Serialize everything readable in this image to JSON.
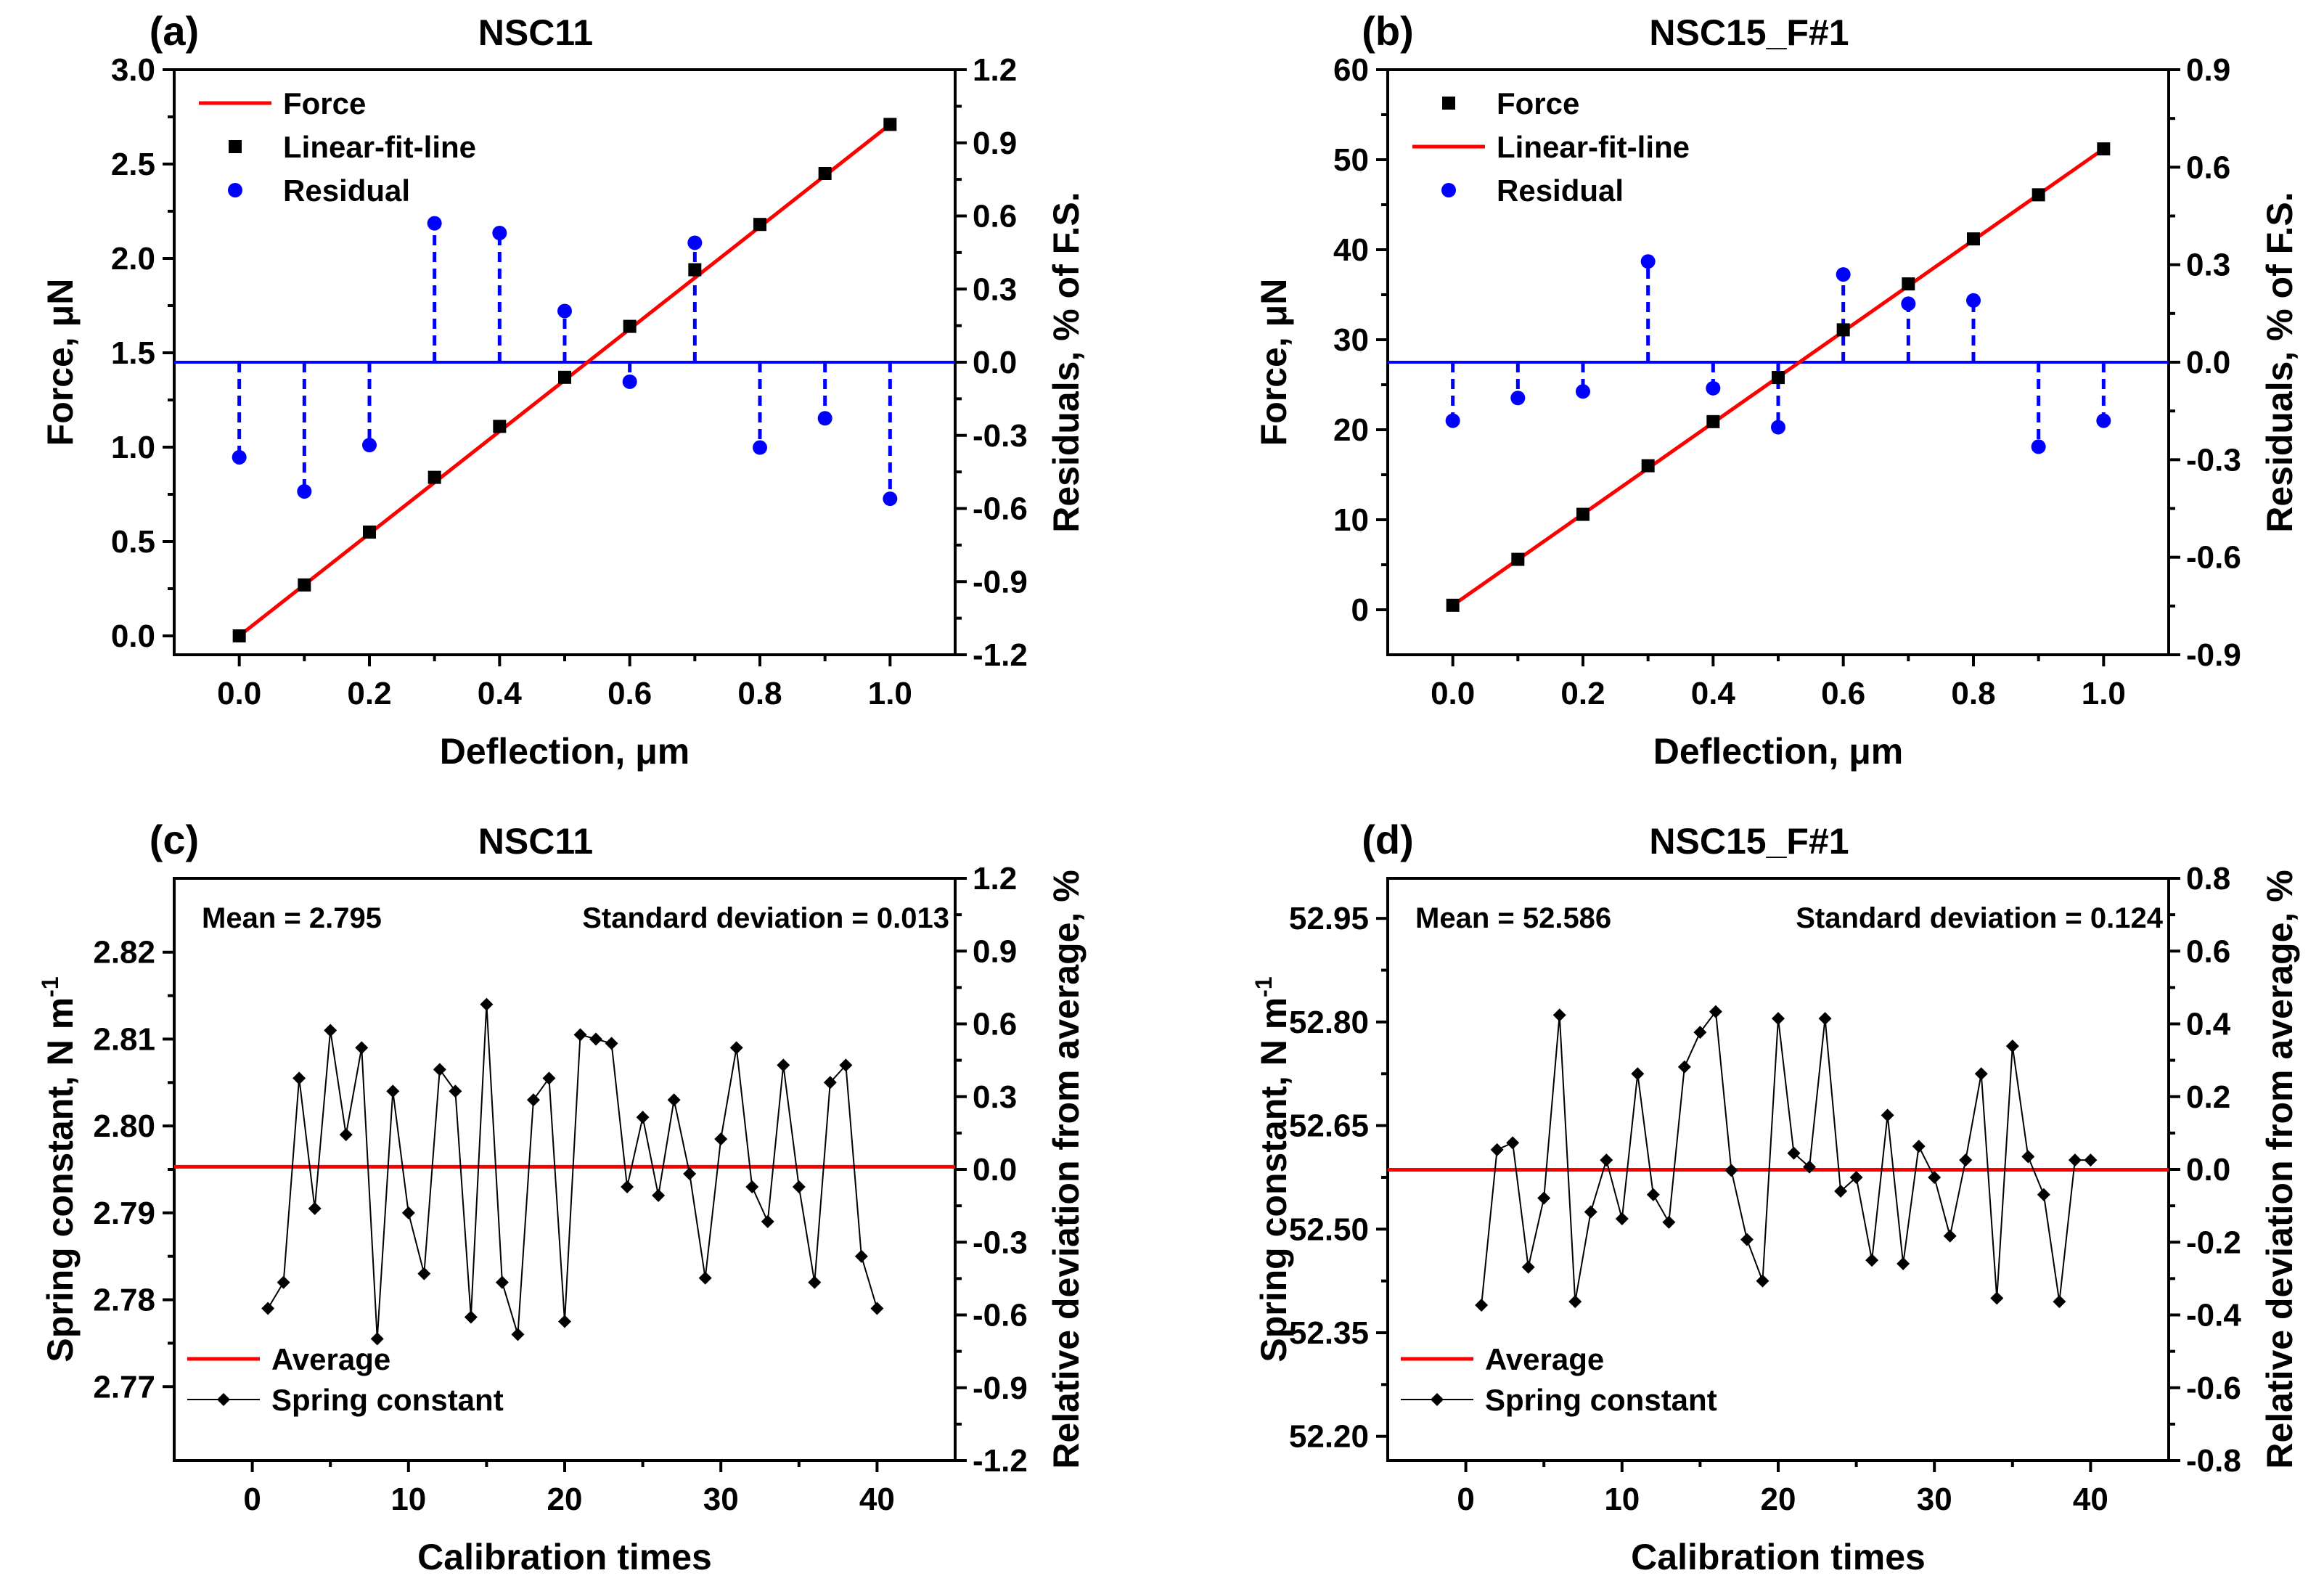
{
  "chart_data": [
    {
      "id": "a",
      "type": "scatter",
      "panel_label": "(a)",
      "title": "NSC11",
      "xlabel": "Deflection, μm",
      "ylabel": "Force, μN",
      "y2label": "Residuals, % of F.S.",
      "xlim": [
        -0.1,
        1.1
      ],
      "ylim": [
        -0.1,
        3.0
      ],
      "y2lim": [
        -1.2,
        1.2
      ],
      "xticks": [
        0.0,
        0.2,
        0.4,
        0.6,
        0.8,
        1.0
      ],
      "xtick_labels": [
        "0.0",
        "0.2",
        "0.4",
        "0.6",
        "0.8",
        "1.0"
      ],
      "yticks": [
        0.0,
        0.5,
        1.0,
        1.5,
        2.0,
        2.5,
        3.0
      ],
      "ytick_labels": [
        "0.0",
        "0.5",
        "1.0",
        "1.5",
        "2.0",
        "2.5",
        "3.0"
      ],
      "y2ticks": [
        -1.2,
        -0.9,
        -0.6,
        -0.3,
        0.0,
        0.3,
        0.6,
        0.9,
        1.2
      ],
      "y2tick_labels": [
        "-1.2",
        "-0.9",
        "-0.6",
        "-0.3",
        "0.0",
        "0.3",
        "0.6",
        "0.9",
        "1.2"
      ],
      "legend": [
        "Force",
        "Linear-fit-line",
        "Residual"
      ],
      "legend_style": [
        "line",
        "square",
        "circle"
      ],
      "x": [
        0.0,
        0.1,
        0.2,
        0.3,
        0.4,
        0.5,
        0.6,
        0.7,
        0.8,
        0.9,
        1.0
      ],
      "force": [
        0.0,
        0.27,
        0.55,
        0.84,
        1.11,
        1.37,
        1.64,
        1.94,
        2.18,
        2.45,
        2.71
      ],
      "fit_line": {
        "x": [
          0.0,
          1.0
        ],
        "y": [
          0.0,
          2.71
        ]
      },
      "residuals": [
        -0.39,
        -0.53,
        -0.34,
        0.57,
        0.53,
        0.21,
        -0.08,
        0.49,
        -0.35,
        -0.23,
        -0.56
      ],
      "zero_line_y2": 0.0
    },
    {
      "id": "b",
      "type": "scatter",
      "panel_label": "(b)",
      "title": "NSC15_F#1",
      "xlabel": "Deflection, μm",
      "ylabel": "Force, μN",
      "y2label": "Residuals, % of F.S.",
      "xlim": [
        -0.1,
        1.1
      ],
      "ylim": [
        -5,
        60
      ],
      "y2lim": [
        -0.9,
        0.9
      ],
      "xticks": [
        0.0,
        0.2,
        0.4,
        0.6,
        0.8,
        1.0
      ],
      "xtick_labels": [
        "0.0",
        "0.2",
        "0.4",
        "0.6",
        "0.8",
        "1.0"
      ],
      "yticks": [
        0,
        10,
        20,
        30,
        40,
        50,
        60
      ],
      "ytick_labels": [
        "0",
        "10",
        "20",
        "30",
        "40",
        "50",
        "60"
      ],
      "y2ticks": [
        -0.9,
        -0.6,
        -0.3,
        0.0,
        0.3,
        0.6,
        0.9
      ],
      "y2tick_labels": [
        "-0.9",
        "-0.6",
        "-0.3",
        "0.0",
        "0.3",
        "0.6",
        "0.9"
      ],
      "legend": [
        "Force",
        "Linear-fit-line",
        "Residual"
      ],
      "legend_style": [
        "square",
        "line",
        "circle"
      ],
      "x": [
        0.0,
        0.1,
        0.2,
        0.3,
        0.4,
        0.5,
        0.6,
        0.7,
        0.8,
        0.9,
        1.0
      ],
      "force": [
        0.5,
        5.6,
        10.6,
        16.0,
        20.9,
        25.8,
        31.1,
        36.2,
        41.2,
        46.1,
        51.2
      ],
      "fit_line": {
        "x": [
          0.0,
          1.0
        ],
        "y": [
          0.5,
          51.2
        ]
      },
      "residuals": [
        -0.18,
        -0.11,
        -0.09,
        0.31,
        -0.08,
        -0.2,
        0.27,
        0.18,
        0.19,
        -0.26,
        -0.18
      ],
      "zero_line_y2": 0.0
    },
    {
      "id": "c",
      "type": "line",
      "panel_label": "(c)",
      "title": "NSC11",
      "xlabel": "Calibration times",
      "ylabel": "Spring constant, N m",
      "ylabel_sup": "-1",
      "y2label": "Relative deviation from average, %",
      "xlim": [
        -5,
        45
      ],
      "ylim": [
        2.7615,
        2.8285
      ],
      "y2lim": [
        -1.2,
        1.2
      ],
      "xticks": [
        0,
        10,
        20,
        30,
        40
      ],
      "xtick_labels": [
        "0",
        "10",
        "20",
        "30",
        "40"
      ],
      "yticks": [
        2.77,
        2.78,
        2.79,
        2.8,
        2.81,
        2.82
      ],
      "ytick_labels": [
        "2.77",
        "2.78",
        "2.79",
        "2.80",
        "2.81",
        "2.82"
      ],
      "y2ticks": [
        -1.2,
        -0.9,
        -0.6,
        -0.3,
        0.0,
        0.3,
        0.6,
        0.9,
        1.2
      ],
      "y2tick_labels": [
        "-1.2",
        "-0.9",
        "-0.6",
        "-0.3",
        "0.0",
        "0.3",
        "0.6",
        "0.9",
        "1.2"
      ],
      "legend": [
        "Average",
        "Spring constant"
      ],
      "mean_text": "Mean = 2.795",
      "std_text": "Standard deviation = 0.013",
      "average": 2.7953,
      "x": [
        1,
        2,
        3,
        4,
        5,
        6,
        7,
        8,
        9,
        10,
        11,
        12,
        13,
        14,
        15,
        16,
        17,
        18,
        19,
        20,
        21,
        22,
        23,
        24,
        25,
        26,
        27,
        28,
        29,
        30,
        31,
        32,
        33,
        34,
        35,
        36,
        37,
        38,
        39,
        40
      ],
      "values": [
        2.779,
        2.782,
        2.8055,
        2.7905,
        2.811,
        2.799,
        2.809,
        2.7755,
        2.804,
        2.79,
        2.783,
        2.8065,
        2.804,
        2.778,
        2.814,
        2.782,
        2.776,
        2.803,
        2.8055,
        2.7775,
        2.8105,
        2.81,
        2.8095,
        2.793,
        2.801,
        2.792,
        2.803,
        2.7945,
        2.7825,
        2.7985,
        2.809,
        2.793,
        2.789,
        2.807,
        2.793,
        2.782,
        2.805,
        2.807,
        2.785,
        2.779
      ]
    },
    {
      "id": "d",
      "type": "line",
      "panel_label": "(d)",
      "title": "NSC15_F#1",
      "xlabel": "Calibration times",
      "ylabel": "Spring constant, N m",
      "ylabel_sup": "-1",
      "y2label": "Relative deviation from average, %",
      "xlim": [
        -5,
        45
      ],
      "ylim": [
        52.165,
        53.008
      ],
      "y2lim": [
        -0.8,
        0.8
      ],
      "xticks": [
        0,
        10,
        20,
        30,
        40
      ],
      "xtick_labels": [
        "0",
        "10",
        "20",
        "30",
        "40"
      ],
      "yticks": [
        52.2,
        52.35,
        52.5,
        52.65,
        52.8,
        52.95
      ],
      "ytick_labels": [
        "52.20",
        "52.35",
        "52.50",
        "52.65",
        "52.80",
        "52.95"
      ],
      "y2ticks": [
        -0.8,
        -0.6,
        -0.4,
        -0.2,
        0.0,
        0.2,
        0.4,
        0.6,
        0.8
      ],
      "y2tick_labels": [
        "-0.8",
        "-0.6",
        "-0.4",
        "-0.2",
        "0.0",
        "0.2",
        "0.4",
        "0.6",
        "0.8"
      ],
      "legend": [
        "Average",
        "Spring constant"
      ],
      "mean_text": "Mean = 52.586",
      "std_text": "Standard deviation = 0.124",
      "average": 52.586,
      "x": [
        1,
        2,
        3,
        4,
        5,
        6,
        7,
        8,
        9,
        10,
        11,
        12,
        13,
        14,
        15,
        16,
        17,
        18,
        19,
        20,
        21,
        22,
        23,
        24,
        25,
        26,
        27,
        28,
        29,
        30,
        31,
        32,
        33,
        34,
        35,
        36,
        37,
        38,
        39,
        40
      ],
      "values": [
        52.39,
        52.615,
        52.625,
        52.445,
        52.545,
        52.81,
        52.395,
        52.525,
        52.6,
        52.515,
        52.725,
        52.55,
        52.51,
        52.735,
        52.785,
        52.815,
        52.585,
        52.485,
        52.425,
        52.805,
        52.61,
        52.59,
        52.805,
        52.555,
        52.575,
        52.455,
        52.665,
        52.45,
        52.62,
        52.575,
        52.49,
        52.6,
        52.725,
        52.4,
        52.765,
        52.605,
        52.55,
        52.395,
        52.6,
        52.6
      ]
    }
  ]
}
